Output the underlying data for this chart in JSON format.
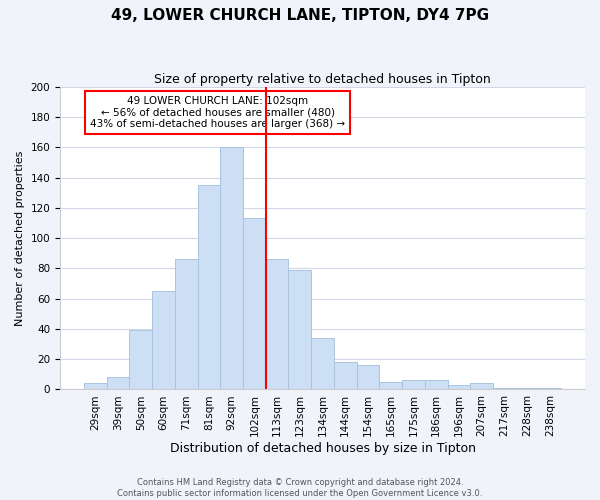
{
  "title": "49, LOWER CHURCH LANE, TIPTON, DY4 7PG",
  "subtitle": "Size of property relative to detached houses in Tipton",
  "xlabel": "Distribution of detached houses by size in Tipton",
  "ylabel": "Number of detached properties",
  "bar_labels": [
    "29sqm",
    "39sqm",
    "50sqm",
    "60sqm",
    "71sqm",
    "81sqm",
    "92sqm",
    "102sqm",
    "113sqm",
    "123sqm",
    "134sqm",
    "144sqm",
    "154sqm",
    "165sqm",
    "175sqm",
    "186sqm",
    "196sqm",
    "207sqm",
    "217sqm",
    "228sqm",
    "238sqm"
  ],
  "bar_values": [
    4,
    8,
    39,
    65,
    86,
    135,
    160,
    113,
    86,
    79,
    34,
    18,
    16,
    5,
    6,
    6,
    3,
    4,
    1,
    1,
    1
  ],
  "bar_color": "#ccdff5",
  "bar_edge_color": "#a8c4e0",
  "vline_color": "red",
  "vline_index": 7,
  "ylim": [
    0,
    200
  ],
  "yticks": [
    0,
    20,
    40,
    60,
    80,
    100,
    120,
    140,
    160,
    180,
    200
  ],
  "annotation_text": "49 LOWER CHURCH LANE: 102sqm\n← 56% of detached houses are smaller (480)\n43% of semi-detached houses are larger (368) →",
  "annotation_box_color": "white",
  "annotation_box_edge_color": "red",
  "footer_line1": "Contains HM Land Registry data © Crown copyright and database right 2024.",
  "footer_line2": "Contains public sector information licensed under the Open Government Licence v3.0.",
  "background_color": "#f0f4fa",
  "plot_background_color": "white",
  "grid_color": "#d0d8e8",
  "title_fontsize": 11,
  "subtitle_fontsize": 9,
  "xlabel_fontsize": 9,
  "ylabel_fontsize": 8,
  "tick_fontsize": 7.5,
  "annotation_fontsize": 7.5
}
